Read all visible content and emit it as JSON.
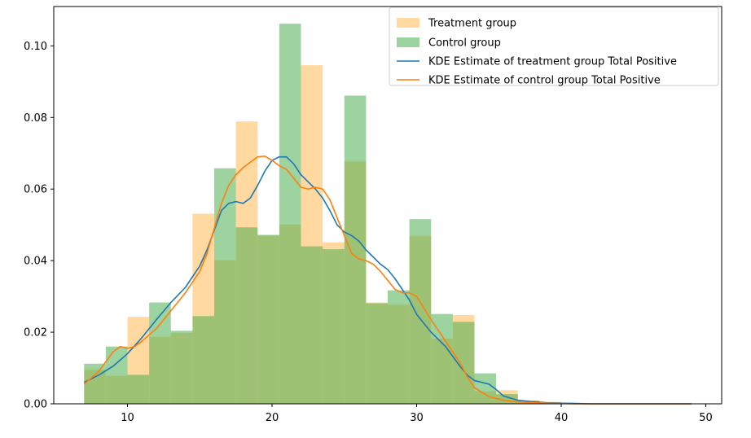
{
  "chart_data": {
    "type": "histogram",
    "title": "",
    "xlabel": "",
    "ylabel": "",
    "xlim": [
      4.9,
      51.1
    ],
    "ylim": [
      0,
      0.111
    ],
    "xticks": [
      10,
      20,
      30,
      40,
      50
    ],
    "yticks": [
      0.0,
      0.02,
      0.04,
      0.06,
      0.08,
      0.1
    ],
    "ytick_format": 2,
    "grid": false,
    "legend_position": "top-right",
    "bin_edges": [
      7.0,
      8.5,
      10.0,
      11.5,
      13.0,
      14.5,
      16.0,
      17.5,
      19.0,
      20.5,
      22.0,
      23.5,
      25.0,
      26.5,
      28.0,
      29.5,
      31.0,
      32.5,
      34.0,
      35.5,
      37.0,
      38.5,
      40.0,
      41.5,
      43.0,
      44.5,
      46.0,
      47.5,
      49.0
    ],
    "series": [
      {
        "name": "Treatment group",
        "kind": "hist",
        "color": "#ffbf5f",
        "opacity": 0.6,
        "values": [
          0.0095,
          0.0078,
          0.0243,
          0.0187,
          0.0198,
          0.0531,
          0.0401,
          0.0789,
          0.047,
          0.0501,
          0.0946,
          0.0451,
          0.0677,
          0.0283,
          0.0277,
          0.0469,
          0.0182,
          0.0248,
          0.0035,
          0.0038,
          0.001,
          0.0003,
          0.0001,
          0.0,
          0.0,
          0.0,
          0.0,
          0.0
        ]
      },
      {
        "name": "Control group",
        "kind": "hist",
        "color": "#4caf50",
        "opacity": 0.55,
        "values": [
          0.0112,
          0.016,
          0.0081,
          0.0283,
          0.0204,
          0.0245,
          0.0658,
          0.0493,
          0.0472,
          0.1062,
          0.044,
          0.0432,
          0.0861,
          0.0281,
          0.0317,
          0.0516,
          0.0251,
          0.0229,
          0.0085,
          0.0027,
          0.0008,
          0.0005,
          0.0002,
          0.0,
          0.0,
          0.0,
          0.0,
          0.0
        ]
      },
      {
        "name": "KDE Estimate of treatment group Total Positive",
        "kind": "line",
        "color": "#1f77b4",
        "x": [
          7.0,
          8.0,
          9.0,
          10.0,
          11.0,
          12.0,
          13.0,
          14.0,
          15.0,
          15.5,
          16.0,
          16.5,
          17.0,
          17.5,
          18.0,
          18.5,
          19.0,
          19.5,
          20.0,
          20.5,
          21.0,
          21.5,
          22.0,
          22.5,
          23.0,
          23.5,
          24.0,
          24.5,
          25.0,
          25.5,
          26.0,
          26.5,
          27.0,
          27.5,
          28.0,
          28.5,
          29.0,
          29.5,
          30.0,
          31.0,
          32.0,
          33.0,
          33.5,
          34.0,
          34.5,
          35.0,
          35.5,
          36.0,
          37.0,
          38.0,
          39.0,
          40.0,
          41.0,
          42.0,
          43.0,
          44.0,
          45.0,
          46.0,
          47.0,
          48.0,
          49.0
        ],
        "y": [
          0.006,
          0.008,
          0.0105,
          0.014,
          0.0185,
          0.0235,
          0.0283,
          0.0325,
          0.0385,
          0.043,
          0.0485,
          0.054,
          0.056,
          0.0565,
          0.056,
          0.0575,
          0.061,
          0.065,
          0.068,
          0.069,
          0.069,
          0.067,
          0.064,
          0.062,
          0.06,
          0.0575,
          0.054,
          0.05,
          0.048,
          0.047,
          0.0455,
          0.043,
          0.041,
          0.039,
          0.0375,
          0.035,
          0.032,
          0.029,
          0.025,
          0.02,
          0.016,
          0.0105,
          0.008,
          0.0065,
          0.006,
          0.0055,
          0.004,
          0.0022,
          0.001,
          0.0006,
          0.0003,
          0.0002,
          0.0001,
          0.0,
          0.0,
          0.0,
          0.0,
          0.0,
          0.0,
          0.0,
          0.0
        ]
      },
      {
        "name": "KDE Estimate of control group Total Positive",
        "kind": "line",
        "color": "#ff7f0e",
        "x": [
          7.0,
          8.0,
          9.0,
          9.5,
          10.0,
          10.5,
          11.0,
          12.0,
          13.0,
          14.0,
          15.0,
          15.5,
          16.0,
          16.5,
          17.0,
          17.5,
          18.0,
          18.5,
          19.0,
          19.5,
          20.0,
          20.5,
          21.0,
          21.5,
          22.0,
          22.5,
          23.0,
          23.5,
          24.0,
          24.5,
          25.0,
          25.5,
          26.0,
          26.5,
          27.0,
          27.5,
          28.0,
          28.5,
          29.0,
          29.5,
          30.0,
          31.0,
          32.0,
          33.0,
          33.5,
          34.0,
          35.0,
          36.0,
          37.0,
          38.0,
          39.0,
          40.0,
          41.0,
          42.0,
          43.0,
          44.0,
          45.0,
          46.0,
          47.0,
          48.0,
          49.0
        ],
        "y": [
          0.0055,
          0.009,
          0.0145,
          0.016,
          0.0155,
          0.016,
          0.0175,
          0.021,
          0.026,
          0.031,
          0.037,
          0.042,
          0.049,
          0.056,
          0.061,
          0.064,
          0.066,
          0.0675,
          0.069,
          0.0692,
          0.068,
          0.0665,
          0.0655,
          0.063,
          0.0605,
          0.06,
          0.0605,
          0.06,
          0.057,
          0.052,
          0.047,
          0.042,
          0.0405,
          0.04,
          0.039,
          0.037,
          0.0345,
          0.032,
          0.031,
          0.031,
          0.03,
          0.0235,
          0.0175,
          0.0115,
          0.0075,
          0.0045,
          0.002,
          0.001,
          0.0005,
          0.0003,
          0.0002,
          0.0001,
          0.0,
          0.0,
          0.0,
          0.0,
          0.0,
          0.0,
          0.0,
          0.0,
          0.0
        ]
      }
    ]
  }
}
